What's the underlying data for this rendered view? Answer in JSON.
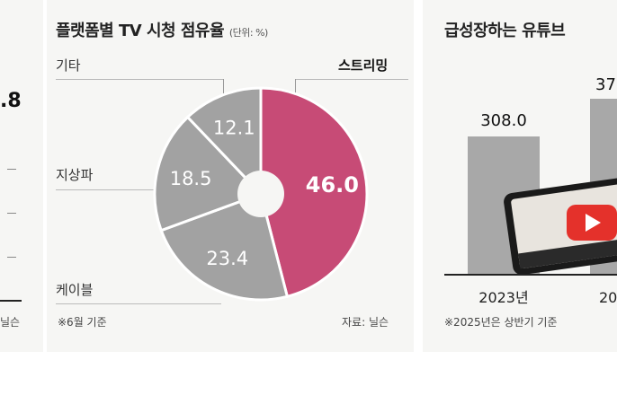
{
  "left_panel": {
    "value_partial": ".8",
    "note_partial": "닐슨"
  },
  "pie_panel": {
    "title": "플랫폼별 TV 시청 점유율",
    "unit": "(단위: %)",
    "footnote": "※6월 기준",
    "source": "자료: 닐슨"
  },
  "bar_panel": {
    "title": "급성장하는 유튜브",
    "footnote": "※2025년은 상반기 기준",
    "value_partial": "37",
    "year_partial": "20"
  },
  "chart_data": [
    {
      "type": "pie",
      "title": "플랫폼별 TV 시청 점유율",
      "unit": "%",
      "categories": [
        "스트리밍",
        "케이블",
        "지상파",
        "기타"
      ],
      "values": [
        46.0,
        23.4,
        18.5,
        12.1
      ],
      "value_labels": [
        "46.0",
        "23.4",
        "18.5",
        "12.1"
      ],
      "colors": [
        "#c74b76",
        "#a2a2a2",
        "#a2a2a2",
        "#a2a2a2"
      ],
      "donut": true,
      "legend": "leader-line labels"
    },
    {
      "type": "bar",
      "title": "급성장하는 유튜브",
      "categories": [
        "2023년"
      ],
      "values": [
        308.0
      ],
      "value_labels": [
        "308.0"
      ],
      "colors": [
        "#a8a8a8"
      ]
    }
  ]
}
